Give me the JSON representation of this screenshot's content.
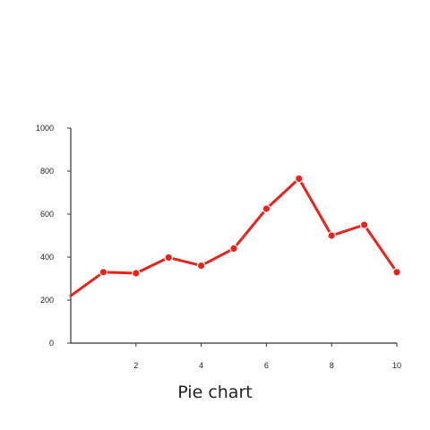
{
  "chart_data": {
    "type": "line",
    "title": "Pie chart",
    "xlabel": "",
    "ylabel": "",
    "xlim": [
      0,
      10
    ],
    "ylim": [
      0,
      1000
    ],
    "x_ticks": [
      2,
      4,
      6,
      8,
      10
    ],
    "y_ticks": [
      0,
      200,
      400,
      600,
      800,
      1000
    ],
    "grid": false,
    "series": [
      {
        "color": "#e8231a",
        "x": [
          0,
          1,
          2,
          3,
          4,
          5,
          6,
          7,
          8,
          9,
          10
        ],
        "y": [
          220,
          330,
          325,
          398,
          360,
          440,
          625,
          765,
          500,
          550,
          330
        ]
      }
    ]
  }
}
